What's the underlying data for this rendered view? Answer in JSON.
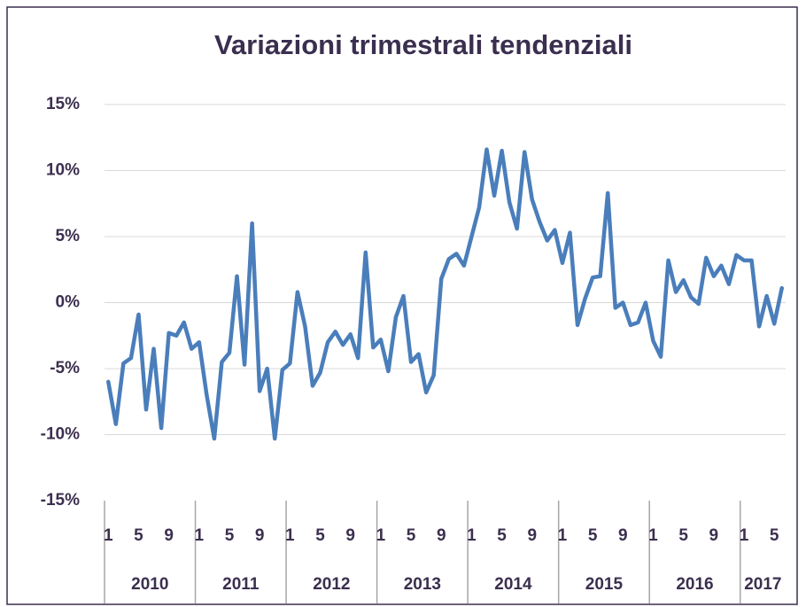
{
  "chart_data": {
    "type": "line",
    "title": "Variazioni trimestrali tendenziali",
    "categories": [
      "1",
      null,
      null,
      null,
      "5",
      null,
      null,
      null,
      "9",
      null,
      null,
      null,
      "1",
      null,
      null,
      null,
      "5",
      null,
      null,
      null,
      "9",
      null,
      null,
      null,
      "1",
      null,
      null,
      null,
      "5",
      null,
      null,
      null,
      "9",
      null,
      null,
      null,
      "1",
      null,
      null,
      null,
      "5",
      null,
      null,
      null,
      "9",
      null,
      null,
      null,
      "1",
      null,
      null,
      null,
      "5",
      null,
      null,
      null,
      "9",
      null,
      null,
      null,
      "1",
      null,
      null,
      null,
      "5",
      null,
      null,
      null,
      "9",
      null,
      null,
      null,
      "1",
      null,
      null,
      null,
      "5",
      null,
      null,
      null,
      "9",
      null,
      null,
      null,
      "1",
      null,
      null,
      null,
      "5",
      null
    ],
    "groups": [
      "2010",
      "2011",
      "2012",
      "2013",
      "2014",
      "2015",
      "2016",
      "2017"
    ],
    "series": [
      {
        "color": "#4a7ebb",
        "values": [
          -6,
          -9.2,
          -4.6,
          -4.2,
          -0.9,
          -8.1,
          -3.5,
          -9.5,
          -2.3,
          -2.5,
          -1.5,
          -3.5,
          -3,
          -7,
          -10.3,
          -4.5,
          -3.8,
          2,
          -4.7,
          6,
          -6.7,
          -5,
          -10.3,
          -5.1,
          -4.6,
          0.8,
          -1.8,
          -6.3,
          -5.3,
          -3,
          -2.2,
          -3.2,
          -2.4,
          -4.2,
          3.8,
          -3.4,
          -2.8,
          -5.2,
          -1.1,
          0.5,
          -4.5,
          -3.9,
          -6.8,
          -5.5,
          1.8,
          3.3,
          3.7,
          2.8,
          5,
          7.2,
          11.6,
          8.1,
          11.5,
          7.6,
          5.6,
          11.4,
          7.8,
          6.1,
          4.7,
          5.5,
          3,
          5.3,
          -1.7,
          0.3,
          1.9,
          2,
          8.3,
          -0.4,
          0,
          -1.7,
          -1.5,
          0,
          -2.9,
          -4.1,
          3.2,
          0.8,
          1.7,
          0.4,
          -0.1,
          3.4,
          2,
          2.8,
          1.4,
          3.6,
          3.2,
          3.2,
          -1.8,
          0.5,
          -1.6,
          1.1
        ]
      }
    ],
    "ylim": [
      -15,
      15
    ],
    "yticks": [
      {
        "value": -15,
        "label": "-15%"
      },
      {
        "value": -10,
        "label": "-10%"
      },
      {
        "value": -5,
        "label": "-5%"
      },
      {
        "value": 0,
        "label": "0%"
      },
      {
        "value": 5,
        "label": "5%"
      },
      {
        "value": 10,
        "label": "10%"
      },
      {
        "value": 15,
        "label": "15%"
      }
    ],
    "grid": true
  }
}
